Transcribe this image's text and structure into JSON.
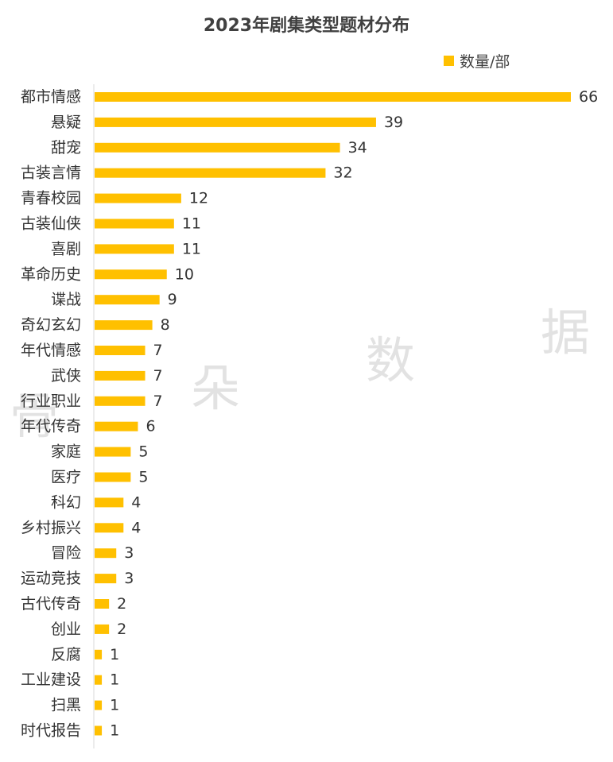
{
  "chart_data": {
    "type": "bar",
    "orientation": "horizontal",
    "title": "2023年剧集类型题材分布",
    "legend": {
      "position": "top-right"
    },
    "series": [
      {
        "name": "数量/部",
        "color": "#FFC000",
        "values": [
          66,
          39,
          34,
          32,
          12,
          11,
          11,
          10,
          9,
          8,
          7,
          7,
          7,
          6,
          5,
          5,
          4,
          4,
          3,
          3,
          2,
          2,
          1,
          1,
          1,
          1
        ]
      }
    ],
    "categories": [
      "都市情感",
      "悬疑",
      "甜宠",
      "古装言情",
      "青春校园",
      "古装仙侠",
      "喜剧",
      "革命历史",
      "谍战",
      "奇幻玄幻",
      "年代情感",
      "武侠",
      "行业职业",
      "年代传奇",
      "家庭",
      "医疗",
      "科幻",
      "乡村振兴",
      "冒险",
      "运动竞技",
      "古代传奇",
      "创业",
      "反腐",
      "工业建设",
      "扫黑",
      "时代报告"
    ],
    "xlim": [
      0,
      66
    ],
    "grid": false,
    "data_labels": true
  },
  "watermark": {
    "chars": [
      "骨",
      "朵",
      "数",
      "据"
    ]
  }
}
